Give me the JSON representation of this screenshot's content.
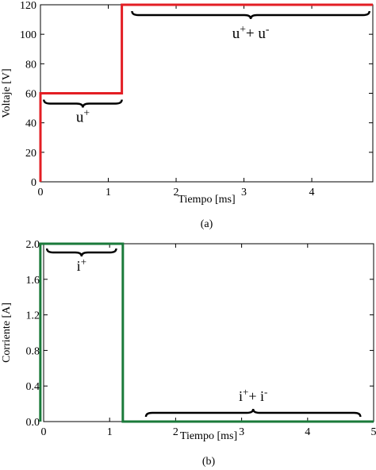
{
  "colors": {
    "top_series": "#e31e24",
    "bottom_series": "#1a7a3a",
    "axis": "#000000",
    "brace": "#000000"
  },
  "chart_data": [
    {
      "type": "line",
      "panel_caption": "(a)",
      "xlabel": "Tiempo [ms]",
      "ylabel": "Voltaje [V]",
      "xlim": [
        0,
        4.9
      ],
      "ylim": [
        0,
        120
      ],
      "xticks": [
        0,
        1,
        2,
        3,
        4
      ],
      "xtick_labels": [
        "0",
        "1",
        "2",
        "3",
        "4"
      ],
      "yticks": [
        0,
        20,
        40,
        60,
        80,
        100,
        120
      ],
      "ytick_labels": [
        "0",
        "20",
        "40",
        "60",
        "80",
        "100",
        "120"
      ],
      "grid": false,
      "series": [
        {
          "color_key": "top_series",
          "x": [
            0,
            0,
            1.2,
            1.2,
            4.9
          ],
          "y": [
            0,
            60,
            60,
            120,
            120
          ]
        }
      ],
      "annotations": [
        {
          "label_base": "u",
          "label_sup": "+",
          "label_rest": "",
          "x_from": 0.05,
          "x_to": 1.2,
          "y": 60
        },
        {
          "label_base": "u",
          "label_sup": "+",
          "label_rest": "+ u",
          "label_sup2": "-",
          "x_from": 1.35,
          "x_to": 4.85,
          "y": 120
        }
      ]
    },
    {
      "type": "line",
      "panel_caption": "(b)",
      "xlabel": "Tiempo [ms]",
      "ylabel": "Corriente [A]",
      "xlim": [
        0,
        5
      ],
      "ylim": [
        0,
        2.0
      ],
      "xticks": [
        0,
        1,
        2,
        3,
        4,
        5
      ],
      "xtick_labels": [
        "0",
        "1",
        "2",
        "3",
        "4",
        "5"
      ],
      "yticks": [
        0,
        0.4,
        0.8,
        1.2,
        1.6,
        2.0
      ],
      "ytick_labels": [
        "0.0",
        "0.4",
        "0.8",
        "1.2",
        "1.6",
        "2.0"
      ],
      "grid": false,
      "series": [
        {
          "color_key": "bottom_series",
          "x": [
            -0.05,
            -0.05,
            1.2,
            1.2,
            5
          ],
          "y": [
            0,
            2.0,
            2.0,
            0,
            0
          ]
        }
      ],
      "annotations": [
        {
          "label_base": "i",
          "label_sup": "+",
          "label_rest": "",
          "x_from": 0.05,
          "x_to": 1.1,
          "y": 2.0
        },
        {
          "label_base": "i",
          "label_sup": "+",
          "label_rest": "+ i",
          "label_sup2": "-",
          "x_from": 1.55,
          "x_to": 4.8,
          "y": 0
        }
      ]
    }
  ]
}
